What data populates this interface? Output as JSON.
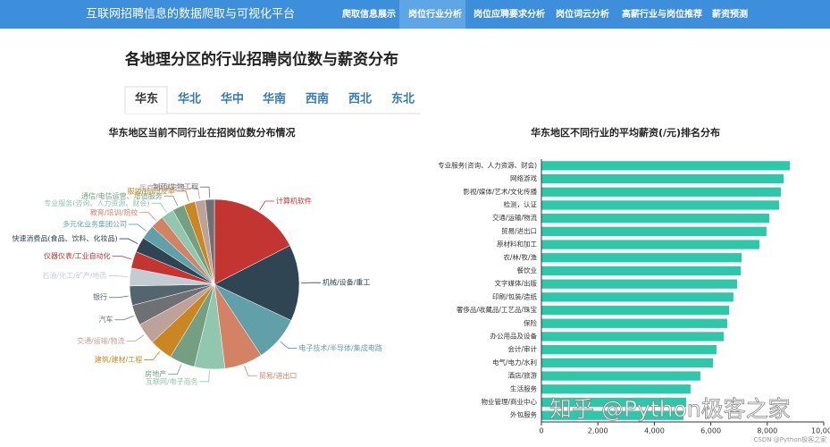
{
  "header": {
    "title": "互联网招聘信息的数据爬取与可视化平台",
    "nav": [
      "爬取信息展示",
      "岗位行业分析",
      "岗位应聘要求分析",
      "岗位词云分析",
      "高薪行业与岗位推荐",
      "薪资预测"
    ],
    "nav_active": 1
  },
  "heading": "各地理分区的行业招聘岗位数与薪资分布",
  "tabs": [
    "华东",
    "华北",
    "华中",
    "华南",
    "西南",
    "西北",
    "东北"
  ],
  "tab_active": 0,
  "watermark": "知乎 @Python极客之家",
  "footer_credit": "CSDN @Python极客之家",
  "chart_data": [
    {
      "type": "pie",
      "title": "华东地区当前不同行业在招岗位数分布情况",
      "categories": [
        "计算机软件",
        "机械/设备/重工",
        "电子技术/半导体/集成电路",
        "贸易/进出口",
        "互联网/电子商务",
        "房地产",
        "建筑/建材/工程",
        "交通/运输/物流",
        "汽车",
        "银行",
        "石油/化工/矿产/地质",
        "仪器仪表/工业自动化",
        "快速消费品(食品、饮料、化妆品)",
        "多元化业务集团公司",
        "教育/培训/院校",
        "专业服务(咨询、人力资源、财会)",
        "通信/电信运营、增值服务",
        "服装/纺织/皮革",
        "医疗/护理/卫生",
        "制药/生物工程"
      ],
      "values": [
        180,
        150,
        90,
        75,
        60,
        50,
        45,
        42,
        40,
        38,
        35,
        33,
        30,
        28,
        26,
        25,
        24,
        22,
        20,
        18
      ],
      "colors": [
        "#c23531",
        "#2f4554",
        "#61a0a8",
        "#d48265",
        "#91c7ae",
        "#749f83",
        "#ca8622",
        "#bda29a",
        "#6e7074",
        "#546570",
        "#c4ccd3",
        "#c23531",
        "#2f4554",
        "#61a0a8",
        "#d48265",
        "#91c7ae",
        "#749f83",
        "#ca8622",
        "#bda29a",
        "#6e7074"
      ]
    },
    {
      "type": "bar",
      "orientation": "horizontal",
      "title": "华东地区不同行业的平均薪资(/元)排名分布",
      "categories": [
        "专业服务(咨询、人力资源、财会)",
        "网络游戏",
        "影视/媒体/艺术/文化传播",
        "检测，认证",
        "交通/运输/物流",
        "贸易/进出口",
        "原材料和加工",
        "农/林/牧/渔",
        "餐饮业",
        "文字媒体/出版",
        "印刷/包装/造纸",
        "奢侈品/收藏品/工艺品/珠宝",
        "保险",
        "办公用品及设备",
        "会计/审计",
        "电气/电力/水利",
        "酒店/旅游",
        "生活服务",
        "物业管理/商业中心",
        "外包服务"
      ],
      "values": [
        8800,
        8580,
        8480,
        8420,
        8070,
        7970,
        7720,
        7090,
        7060,
        6930,
        6800,
        6650,
        6580,
        6460,
        6200,
        6080,
        5630,
        5280,
        5130,
        5030
      ],
      "color": "#2ec7a9",
      "xlim": [
        0,
        10000
      ],
      "xticks": [
        0,
        {
          "value": 2000,
          "label": "2,000"
        },
        {
          "value": 4000,
          "label": "4,000"
        },
        {
          "value": 6000,
          "label": "6,000"
        },
        {
          "value": 8000,
          "label": "8,000"
        },
        {
          "value": 10000,
          "label": "10,000"
        }
      ],
      "grid": false
    }
  ]
}
